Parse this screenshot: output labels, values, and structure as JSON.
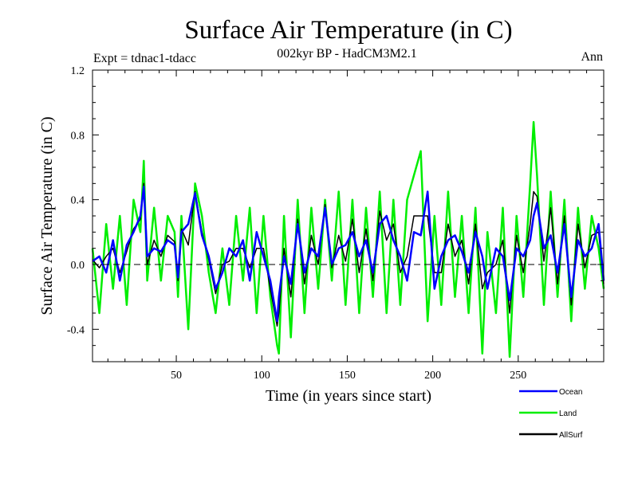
{
  "chart_data": {
    "type": "line",
    "title": "Surface Air Temperature (in C)",
    "subtitle": "002kyr BP - HadCM3M2.1",
    "expt_label": "Expt = tdnac1-tdacc",
    "period_label": "Ann",
    "xlabel": "Time (in years since start)",
    "ylabel": "Surface Air Temperature (in C)",
    "xlim": [
      1,
      300
    ],
    "ylim": [
      -0.6,
      1.2
    ],
    "x_ticks": [
      "50",
      "100",
      "150",
      "200",
      "250"
    ],
    "x_tick_values": [
      50,
      100,
      150,
      200,
      250
    ],
    "y_ticks": [
      "-0.4",
      "0.0",
      "0.4",
      "0.8",
      "1.2"
    ],
    "y_tick_values": [
      -0.4,
      0.0,
      0.4,
      0.8,
      1.2
    ],
    "reference_line": 0.0,
    "x": [
      1,
      5,
      9,
      13,
      17,
      21,
      25,
      29,
      31,
      33,
      37,
      41,
      45,
      49,
      51,
      53,
      57,
      61,
      65,
      69,
      73,
      77,
      81,
      85,
      89,
      93,
      97,
      101,
      105,
      109,
      110,
      113,
      117,
      121,
      125,
      129,
      133,
      137,
      141,
      145,
      149,
      153,
      157,
      161,
      165,
      169,
      173,
      177,
      181,
      185,
      189,
      193,
      197,
      201,
      205,
      209,
      213,
      217,
      221,
      225,
      229,
      232,
      237,
      241,
      245,
      249,
      253,
      257,
      259,
      261,
      265,
      269,
      273,
      277,
      281,
      285,
      289,
      293,
      297,
      300
    ],
    "series": [
      {
        "name": "Ocean",
        "color": "#0000ff",
        "values": [
          0.02,
          0.05,
          -0.05,
          0.15,
          -0.1,
          0.12,
          0.2,
          0.3,
          0.48,
          0.05,
          0.1,
          0.08,
          0.15,
          0.12,
          -0.08,
          0.2,
          0.25,
          0.44,
          0.18,
          0.05,
          -0.15,
          -0.05,
          0.1,
          0.05,
          0.15,
          -0.1,
          0.2,
          0.05,
          -0.1,
          -0.35,
          -0.2,
          0.05,
          -0.12,
          0.25,
          -0.05,
          0.1,
          0.05,
          0.35,
          0.0,
          0.1,
          0.12,
          0.2,
          0.05,
          0.15,
          -0.05,
          0.25,
          0.3,
          0.15,
          0.05,
          -0.1,
          0.2,
          0.18,
          0.45,
          -0.15,
          0.05,
          0.15,
          0.18,
          0.08,
          -0.05,
          0.2,
          0.05,
          -0.15,
          0.1,
          0.05,
          -0.22,
          0.1,
          0.05,
          0.15,
          0.3,
          0.38,
          0.1,
          0.18,
          -0.05,
          0.25,
          -0.2,
          0.15,
          0.05,
          0.1,
          0.25,
          -0.1
        ]
      },
      {
        "name": "Land",
        "color": "#00ee00",
        "values": [
          0.1,
          -0.3,
          0.25,
          -0.15,
          0.3,
          -0.25,
          0.4,
          0.2,
          0.64,
          -0.1,
          0.35,
          -0.1,
          0.3,
          0.2,
          -0.2,
          0.3,
          -0.4,
          0.5,
          0.3,
          -0.05,
          -0.3,
          0.1,
          -0.25,
          0.3,
          -0.1,
          0.35,
          -0.3,
          0.3,
          -0.2,
          -0.5,
          -0.55,
          0.3,
          -0.45,
          0.4,
          -0.3,
          0.35,
          -0.15,
          0.4,
          -0.1,
          0.45,
          -0.25,
          0.4,
          -0.3,
          0.35,
          -0.2,
          0.45,
          -0.3,
          0.4,
          -0.25,
          0.4,
          0.55,
          0.7,
          -0.35,
          0.3,
          -0.25,
          0.45,
          -0.2,
          0.3,
          -0.3,
          0.35,
          -0.55,
          0.2,
          -0.3,
          0.35,
          -0.57,
          0.3,
          -0.2,
          0.5,
          0.88,
          0.55,
          -0.25,
          0.45,
          -0.2,
          0.4,
          -0.35,
          0.35,
          -0.15,
          0.3,
          0.1,
          -0.15
        ]
      },
      {
        "name": "AllSurf",
        "color": "#000000",
        "values": [
          0.03,
          -0.02,
          0.05,
          0.1,
          -0.05,
          0.08,
          0.22,
          0.28,
          0.5,
          0.0,
          0.15,
          0.05,
          0.18,
          0.14,
          -0.1,
          0.22,
          0.12,
          0.45,
          0.2,
          0.03,
          -0.18,
          0.0,
          0.02,
          0.1,
          0.1,
          -0.02,
          0.1,
          0.1,
          -0.15,
          -0.38,
          -0.3,
          0.1,
          -0.2,
          0.28,
          -0.12,
          0.18,
          0.0,
          0.37,
          -0.02,
          0.18,
          0.02,
          0.28,
          -0.05,
          0.22,
          -0.1,
          0.33,
          0.15,
          0.25,
          -0.05,
          0.05,
          0.3,
          0.3,
          0.3,
          -0.05,
          -0.05,
          0.25,
          0.05,
          0.15,
          -0.12,
          0.25,
          -0.15,
          -0.05,
          0.0,
          0.15,
          -0.3,
          0.18,
          -0.05,
          0.25,
          0.45,
          0.42,
          0.02,
          0.35,
          -0.12,
          0.3,
          -0.25,
          0.25,
          -0.02,
          0.18,
          0.2,
          -0.12
        ]
      }
    ],
    "legend_position": "bottom-right"
  }
}
